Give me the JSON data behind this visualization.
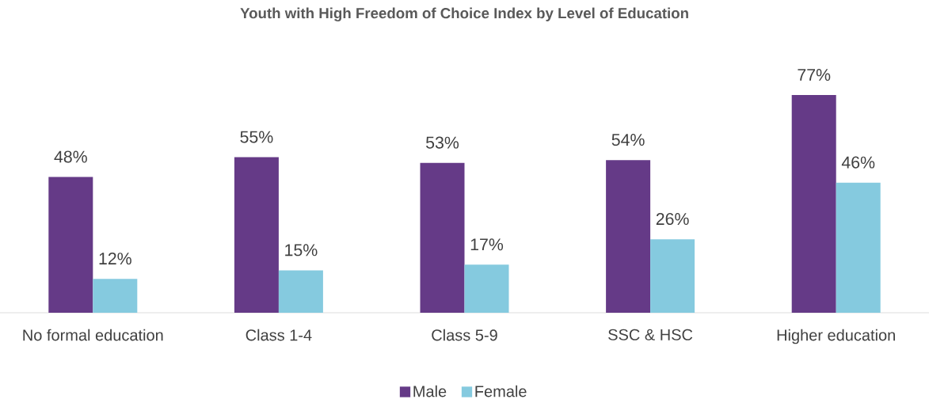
{
  "chart_data": {
    "type": "bar",
    "title": "Youth with High Freedom of Choice Index by Level of Education",
    "categories": [
      "No formal education",
      "Class 1-4",
      "Class 5-9",
      "SSC & HSC",
      "Higher education"
    ],
    "series": [
      {
        "name": "Male",
        "color": "#653a87",
        "values": [
          48,
          55,
          53,
          54,
          77
        ],
        "value_labels": [
          "48%",
          "55%",
          "53%",
          "54%",
          "77%"
        ]
      },
      {
        "name": "Female",
        "color": "#85cadf",
        "values": [
          12,
          15,
          17,
          26,
          46
        ],
        "value_labels": [
          "12%",
          "15%",
          "17%",
          "26%",
          "46%"
        ]
      }
    ],
    "legend": "bottom"
  }
}
